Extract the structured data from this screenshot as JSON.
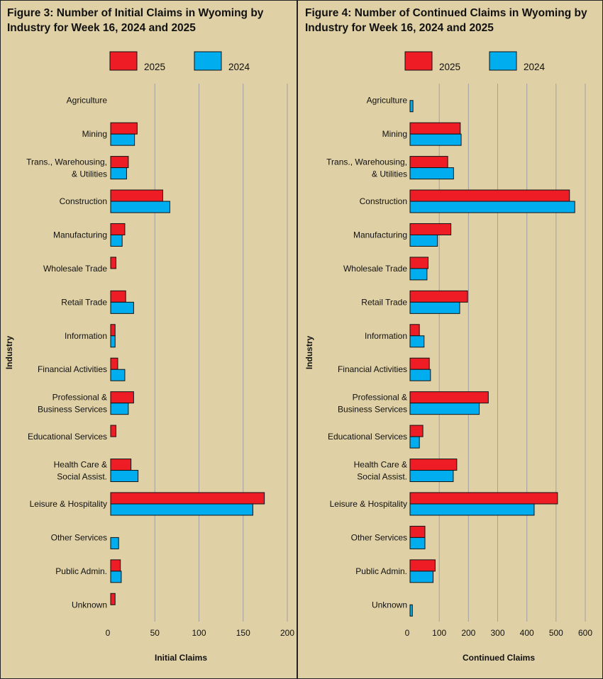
{
  "colors": {
    "s2025": "#ee1c25",
    "s2024": "#00aeef",
    "grid": "#a0a0a0",
    "background": "#dfd0a5"
  },
  "charts": [
    {
      "title": "Figure 3: Number of Initial Claims in Wyoming by Industry for Week 16, 2024 and 2025",
      "legend": [
        "2025",
        "2024"
      ],
      "xlabel": "Initial Claims",
      "ylabel": "Industry",
      "ticks": [
        "0",
        "50",
        "100",
        "150",
        "200"
      ]
    },
    {
      "title": "Figure 4: Number of Continued Claims in Wyoming by Industry for Week 16, 2024 and 2025",
      "legend": [
        "2025",
        "2024"
      ],
      "xlabel": "Continued Claims",
      "ylabel": "Industry",
      "ticks": [
        "0",
        "100",
        "200",
        "300",
        "400",
        "500",
        "600"
      ]
    }
  ],
  "chart_data": [
    {
      "type": "bar",
      "orientation": "horizontal",
      "title": "Figure 3: Number of Initial Claims in Wyoming by Industry for Week 16, 2024 and 2025",
      "xlabel": "Initial Claims",
      "ylabel": "Industry",
      "xlim": [
        0,
        200
      ],
      "grid": true,
      "legend_position": "top",
      "categories": [
        [
          "Agriculture"
        ],
        [
          "Mining"
        ],
        [
          "Trans., Warehousing,",
          "& Utilities"
        ],
        [
          "Construction"
        ],
        [
          "Manufacturing"
        ],
        [
          "Wholesale Trade"
        ],
        [
          "Retail Trade"
        ],
        [
          "Information"
        ],
        [
          "Financial Activities"
        ],
        [
          "Professional &",
          "Business Services"
        ],
        [
          "Educational Services"
        ],
        [
          "Health Care &",
          "Social Assist."
        ],
        [
          "Leisure & Hospitality"
        ],
        [
          "Other Services"
        ],
        [
          "Public Admin."
        ],
        [
          "Unknown"
        ]
      ],
      "series": [
        {
          "name": "2025",
          "values": [
            0,
            30,
            20,
            59,
            16,
            6,
            17,
            5,
            8,
            26,
            6,
            23,
            174,
            0,
            11,
            5
          ]
        },
        {
          "name": "2024",
          "values": [
            0,
            27,
            18,
            67,
            13,
            0,
            26,
            5,
            16,
            20,
            0,
            31,
            161,
            9,
            12,
            0
          ]
        }
      ]
    },
    {
      "type": "bar",
      "orientation": "horizontal",
      "title": "Figure 4: Number of Continued Claims in Wyoming by Industry for Week 16, 2024 and 2025",
      "xlabel": "Continued Claims",
      "ylabel": "Industry",
      "xlim": [
        0,
        600
      ],
      "grid": true,
      "legend_position": "top",
      "categories": [
        [
          "Agriculture"
        ],
        [
          "Mining"
        ],
        [
          "Trans., Warehousing,",
          "& Utilities"
        ],
        [
          "Construction"
        ],
        [
          "Manufacturing"
        ],
        [
          "Wholesale Trade"
        ],
        [
          "Retail Trade"
        ],
        [
          "Information"
        ],
        [
          "Financial Activities"
        ],
        [
          "Professional &",
          "Business Services"
        ],
        [
          "Educational Services"
        ],
        [
          "Health Care &",
          "Social Assist."
        ],
        [
          "Leisure & Hospitality"
        ],
        [
          "Other Services"
        ],
        [
          "Public Admin."
        ],
        [
          "Unknown"
        ]
      ],
      "series": [
        {
          "name": "2025",
          "values": [
            0,
            172,
            129,
            546,
            140,
            62,
            197,
            32,
            66,
            268,
            44,
            160,
            505,
            51,
            86,
            0
          ]
        },
        {
          "name": "2024",
          "values": [
            10,
            175,
            149,
            564,
            94,
            58,
            170,
            48,
            70,
            237,
            32,
            148,
            425,
            51,
            79,
            8
          ]
        }
      ]
    }
  ]
}
